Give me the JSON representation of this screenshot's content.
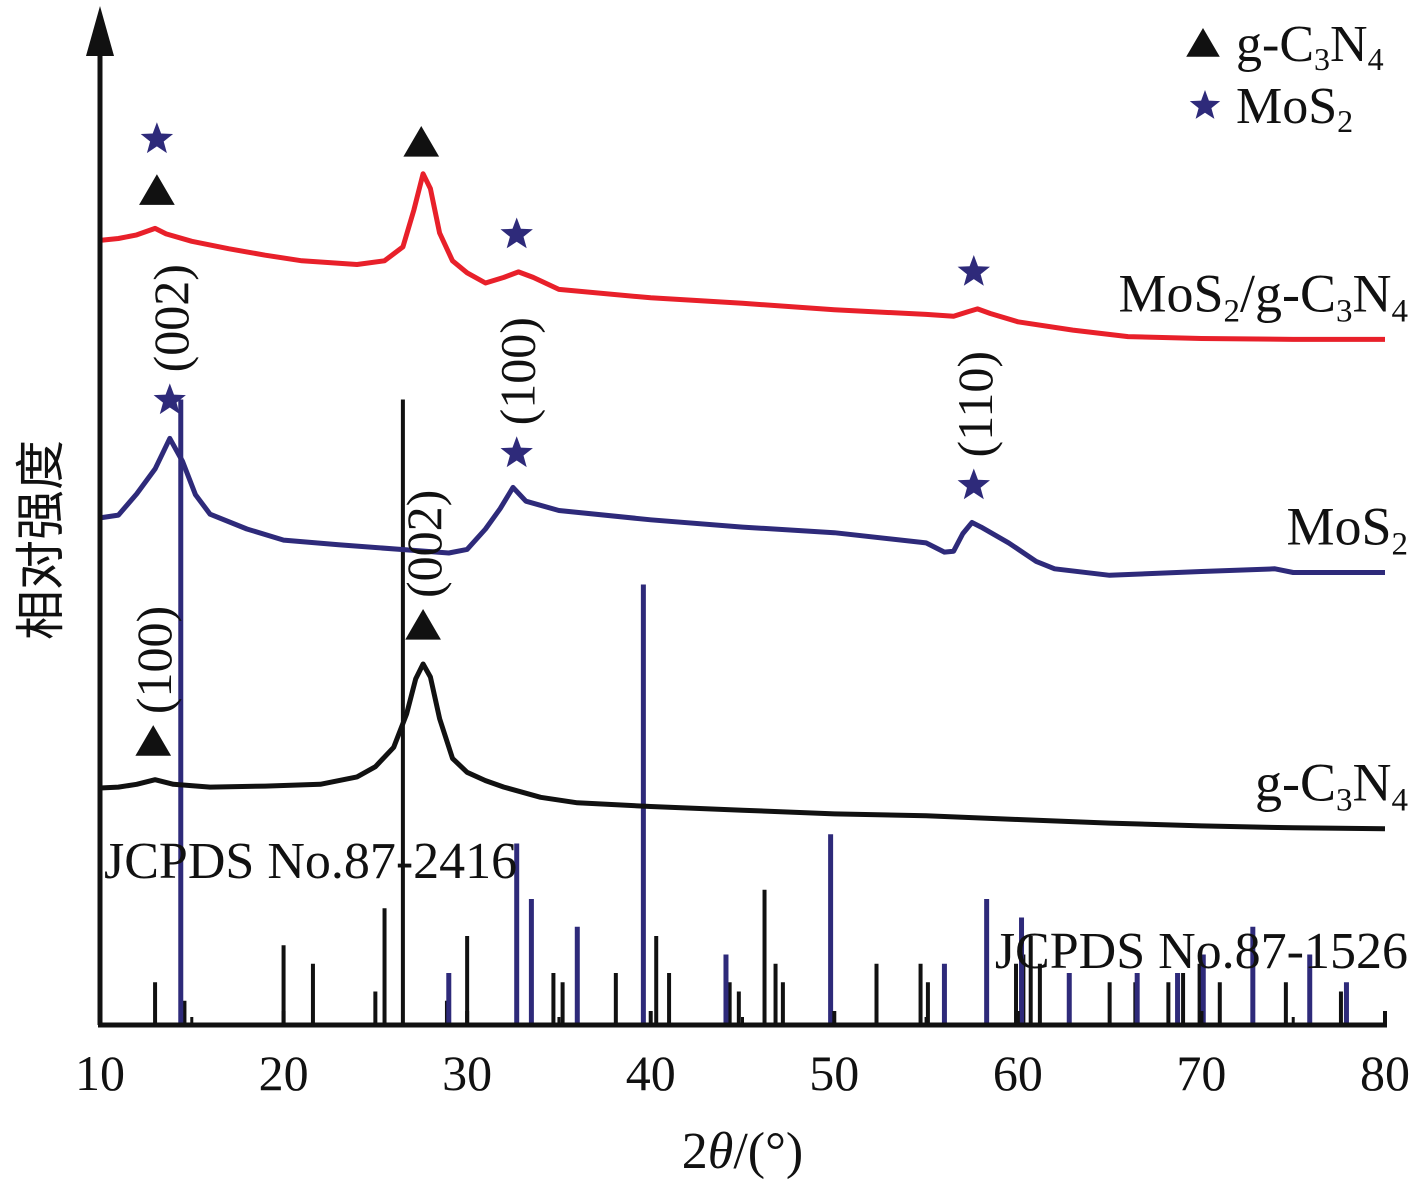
{
  "chart_data": {
    "type": "line",
    "xlabel": "2θ/(°)",
    "ylabel": "相对强度",
    "xlim": [
      10,
      80
    ],
    "ylim": [
      0,
      100
    ],
    "y_units": "arbitrary (relative intensity, curves vertically offset)",
    "x_ticks": [
      10,
      20,
      30,
      40,
      50,
      60,
      70,
      80
    ],
    "grid": false,
    "legend_position": "top-right",
    "legend": [
      {
        "marker": "triangle",
        "color": "#111111",
        "label": "g-C₃N₄"
      },
      {
        "marker": "star",
        "color": "#2e2a7a",
        "label": "MoS₂"
      }
    ],
    "series": [
      {
        "name": "MoS₂/g-C₃N₄",
        "color": "#e8202a",
        "points": [
          [
            10,
            83.2
          ],
          [
            11,
            83.4
          ],
          [
            12,
            83.8
          ],
          [
            13,
            84.5
          ],
          [
            13.6,
            83.9
          ],
          [
            15,
            83.1
          ],
          [
            17,
            82.3
          ],
          [
            19,
            81.6
          ],
          [
            21,
            81.0
          ],
          [
            24,
            80.6
          ],
          [
            25.5,
            81.0
          ],
          [
            26.5,
            82.5
          ],
          [
            27.1,
            86.5
          ],
          [
            27.6,
            90.4
          ],
          [
            28.0,
            88.8
          ],
          [
            28.5,
            84.0
          ],
          [
            29.2,
            81.0
          ],
          [
            30,
            79.7
          ],
          [
            31,
            78.6
          ],
          [
            32,
            79.2
          ],
          [
            32.8,
            79.8
          ],
          [
            33.6,
            79.2
          ],
          [
            35,
            77.9
          ],
          [
            40,
            77.0
          ],
          [
            45,
            76.4
          ],
          [
            50,
            75.7
          ],
          [
            55,
            75.2
          ],
          [
            56.5,
            75.0
          ],
          [
            57.3,
            75.5
          ],
          [
            57.8,
            75.8
          ],
          [
            58.5,
            75.3
          ],
          [
            60,
            74.4
          ],
          [
            63,
            73.5
          ],
          [
            66,
            72.8
          ],
          [
            70,
            72.6
          ],
          [
            75,
            72.5
          ],
          [
            80,
            72.5
          ]
        ]
      },
      {
        "name": "MoS₂",
        "color": "#2e2a7a",
        "points": [
          [
            10,
            53.2
          ],
          [
            11,
            53.5
          ],
          [
            12,
            55.8
          ],
          [
            13,
            58.5
          ],
          [
            13.8,
            61.8
          ],
          [
            14.5,
            59.3
          ],
          [
            15.2,
            55.7
          ],
          [
            16,
            53.6
          ],
          [
            18,
            52.0
          ],
          [
            20,
            50.8
          ],
          [
            23,
            50.3
          ],
          [
            27,
            49.7
          ],
          [
            29,
            49.4
          ],
          [
            30,
            49.8
          ],
          [
            31,
            52.0
          ],
          [
            31.8,
            54.2
          ],
          [
            32.5,
            56.5
          ],
          [
            33.2,
            55.0
          ],
          [
            35,
            54.0
          ],
          [
            40,
            53.0
          ],
          [
            45,
            52.2
          ],
          [
            50,
            51.6
          ],
          [
            55,
            50.5
          ],
          [
            56,
            49.5
          ],
          [
            56.5,
            49.6
          ],
          [
            57,
            51.5
          ],
          [
            57.5,
            52.7
          ],
          [
            58,
            52.2
          ],
          [
            59.5,
            50.5
          ],
          [
            61,
            48.5
          ],
          [
            62,
            47.7
          ],
          [
            65,
            47.0
          ],
          [
            70,
            47.4
          ],
          [
            74,
            47.7
          ],
          [
            75,
            47.3
          ],
          [
            80,
            47.3
          ]
        ]
      },
      {
        "name": "g-C₃N₄",
        "color": "#111111",
        "points": [
          [
            10,
            24.0
          ],
          [
            11,
            24.1
          ],
          [
            12,
            24.4
          ],
          [
            13,
            24.9
          ],
          [
            14,
            24.4
          ],
          [
            16,
            24.1
          ],
          [
            19,
            24.2
          ],
          [
            22,
            24.4
          ],
          [
            24,
            25.2
          ],
          [
            25,
            26.3
          ],
          [
            26,
            28.4
          ],
          [
            26.7,
            32.0
          ],
          [
            27.2,
            35.8
          ],
          [
            27.6,
            37.4
          ],
          [
            28.0,
            36.0
          ],
          [
            28.5,
            31.5
          ],
          [
            29.2,
            27.2
          ],
          [
            30,
            25.7
          ],
          [
            31,
            24.8
          ],
          [
            32,
            24.1
          ],
          [
            34,
            23.0
          ],
          [
            36,
            22.4
          ],
          [
            40,
            22.0
          ],
          [
            45,
            21.6
          ],
          [
            50,
            21.2
          ],
          [
            55,
            21.0
          ],
          [
            60,
            20.6
          ],
          [
            65,
            20.2
          ],
          [
            70,
            19.9
          ],
          [
            75,
            19.7
          ],
          [
            80,
            19.6
          ]
        ]
      }
    ],
    "reference_patterns": [
      {
        "name": "JCPDS No.87-2416",
        "color": "#111111",
        "peaks": [
          [
            13.0,
            3
          ],
          [
            14.6,
            1
          ],
          [
            20.0,
            7
          ],
          [
            21.6,
            5
          ],
          [
            25.0,
            2
          ],
          [
            25.5,
            11
          ],
          [
            26.5,
            66
          ],
          [
            28.9,
            1
          ],
          [
            30.0,
            8
          ],
          [
            34.7,
            4
          ],
          [
            35.2,
            3
          ],
          [
            38.1,
            4
          ],
          [
            40.3,
            8
          ],
          [
            41.0,
            4
          ],
          [
            44.3,
            3
          ],
          [
            44.8,
            2
          ],
          [
            46.2,
            13
          ],
          [
            46.8,
            5
          ],
          [
            47.2,
            3
          ],
          [
            52.3,
            5
          ],
          [
            54.7,
            5
          ],
          [
            55.1,
            3
          ],
          [
            56.0,
            3
          ],
          [
            59.9,
            5
          ],
          [
            60.3,
            6
          ],
          [
            60.7,
            8
          ],
          [
            61.2,
            5
          ],
          [
            65.0,
            3
          ],
          [
            66.4,
            3
          ],
          [
            68.2,
            3
          ],
          [
            69.0,
            4
          ],
          [
            69.9,
            5
          ],
          [
            71.0,
            3
          ],
          [
            74.6,
            3
          ],
          [
            77.6,
            2
          ]
        ]
      },
      {
        "name": "JCPDS No.87-1526",
        "color": "#2e2a7a",
        "peaks": [
          [
            14.4,
            66
          ],
          [
            29.0,
            4
          ],
          [
            32.7,
            18
          ],
          [
            33.5,
            12
          ],
          [
            36.0,
            9
          ],
          [
            39.6,
            46
          ],
          [
            44.1,
            6
          ],
          [
            49.8,
            19
          ],
          [
            56.0,
            5
          ],
          [
            58.3,
            12
          ],
          [
            60.2,
            10
          ],
          [
            62.8,
            4
          ],
          [
            66.5,
            4
          ],
          [
            68.7,
            4
          ],
          [
            70.1,
            6
          ],
          [
            72.8,
            9
          ],
          [
            75.9,
            6
          ],
          [
            77.9,
            3
          ]
        ]
      }
    ],
    "peak_markers": [
      {
        "series": "MoS₂/g-C₃N₄",
        "x": 13.1,
        "marker": "triangle"
      },
      {
        "series": "MoS₂/g-C₃N₄",
        "x": 13.1,
        "marker": "star"
      },
      {
        "series": "MoS₂/g-C₃N₄",
        "x": 27.5,
        "marker": "triangle"
      },
      {
        "series": "MoS₂/g-C₃N₄",
        "x": 32.7,
        "marker": "star"
      },
      {
        "series": "MoS₂/g-C₃N₄",
        "x": 57.6,
        "marker": "star"
      },
      {
        "series": "MoS₂",
        "x": 13.8,
        "marker": "star",
        "label": "(002)"
      },
      {
        "series": "MoS₂",
        "x": 32.7,
        "marker": "star",
        "label": "(100)"
      },
      {
        "series": "MoS₂",
        "x": 57.6,
        "marker": "star",
        "label": "(110)"
      },
      {
        "series": "g-C₃N₄",
        "x": 12.9,
        "marker": "triangle",
        "label": "(100)"
      },
      {
        "series": "g-C₃N₄",
        "x": 27.6,
        "marker": "triangle",
        "label": "(002)"
      }
    ]
  }
}
